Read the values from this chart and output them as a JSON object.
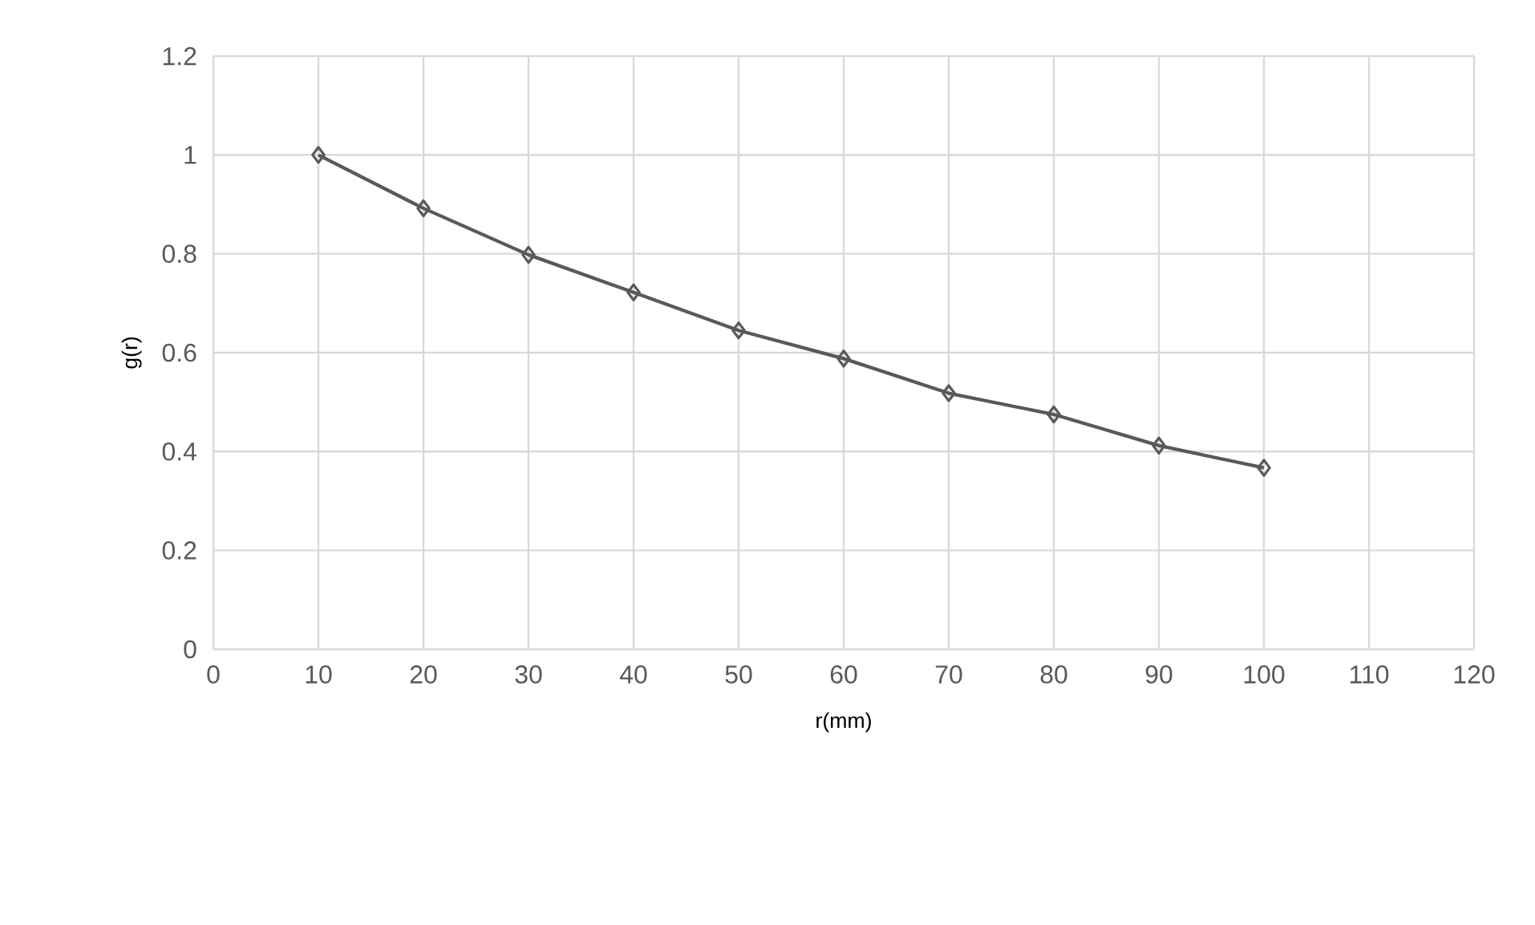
{
  "chart_data": {
    "type": "line",
    "xlabel": "r(mm)",
    "ylabel": "g(r)",
    "x": [
      10,
      20,
      30,
      40,
      50,
      60,
      70,
      80,
      90,
      100
    ],
    "series": [
      {
        "color": "#595959",
        "values": [
          1.0,
          0.892,
          0.798,
          0.722,
          0.645,
          0.588,
          0.518,
          0.475,
          0.412,
          0.367
        ]
      }
    ],
    "xlim": [
      0,
      120
    ],
    "xticks": [
      0,
      10,
      20,
      30,
      40,
      50,
      60,
      70,
      80,
      90,
      100,
      110,
      120
    ],
    "ylim": [
      0,
      1.2
    ],
    "yticks": [
      0,
      0.2,
      0.4,
      0.6,
      0.8,
      1,
      1.2
    ],
    "grid": true,
    "marker": "diamond",
    "line_style": "solid"
  }
}
